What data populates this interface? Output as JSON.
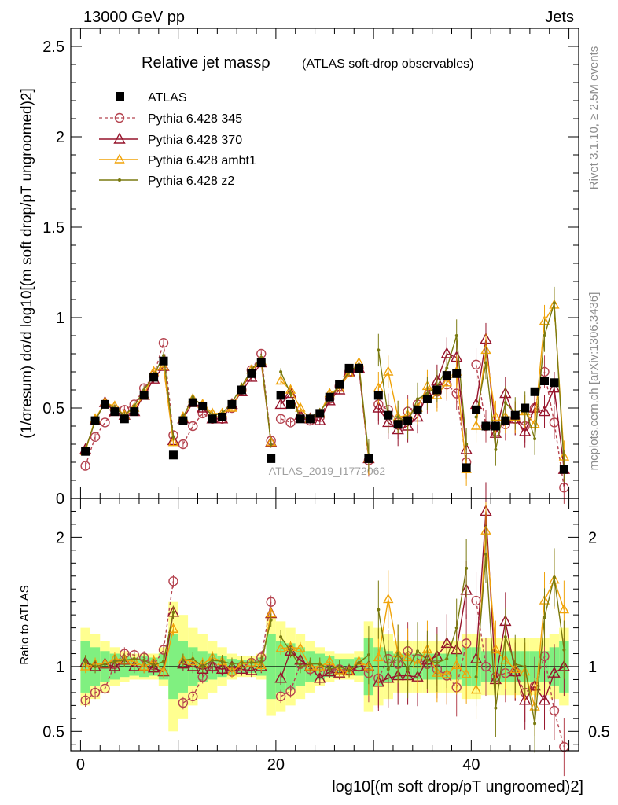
{
  "header": {
    "left": "13000 GeV pp",
    "right": "Jets"
  },
  "side_labels": {
    "rivet": "Rivet 3.1.10, ≥ 2.5M events",
    "mcplots": "mcplots.cern.ch [arXiv:1306.3436]"
  },
  "colors": {
    "atlas": "#000000",
    "p345": "#b5434f",
    "p370": "#96132b",
    "ambt1": "#f0a30a",
    "z2": "#7a7a10",
    "band_green": "#80f080",
    "band_yellow": "#ffff90"
  },
  "chart_data": [
    {
      "type": "scatter",
      "panel": "main",
      "title": "Relative jet massρ",
      "subtitle": "(ATLAS soft-drop observables)",
      "watermark": "ATLAS_2019_I1772062",
      "ylabel": "(1/σresum) dσ/d log10[(m soft drop/pT ungroomed)2]",
      "xlim": [
        -1,
        51
      ],
      "ylim": [
        0,
        2.6
      ],
      "yticks": [
        0,
        0.5,
        1,
        1.5,
        2,
        2.5
      ],
      "ytick_labels": [
        "0",
        "0.5",
        "1",
        "1.5",
        "2",
        "2.5"
      ],
      "grid": false,
      "legend_position": "top-left",
      "x": [
        0.5,
        1.5,
        2.5,
        3.5,
        4.5,
        5.5,
        6.5,
        7.5,
        8.5,
        9.5,
        10.5,
        11.5,
        12.5,
        13.5,
        14.5,
        15.5,
        16.5,
        17.5,
        18.5,
        19.5,
        20.5,
        21.5,
        22.5,
        23.5,
        24.5,
        25.5,
        26.5,
        27.5,
        28.5,
        29.5,
        30.5,
        31.5,
        32.5,
        33.5,
        34.5,
        35.5,
        36.5,
        37.5,
        38.5,
        39.5,
        40.5,
        41.5,
        42.5,
        43.5,
        44.5,
        45.5,
        46.5,
        47.5,
        48.5,
        49.5
      ],
      "series": [
        {
          "name": "ATLAS",
          "marker": "square",
          "values": [
            0.26,
            0.43,
            0.52,
            0.48,
            0.44,
            0.48,
            0.57,
            0.67,
            0.76,
            0.24,
            0.43,
            0.53,
            0.51,
            0.44,
            0.45,
            0.52,
            0.6,
            0.69,
            0.75,
            0.22,
            0.57,
            0.52,
            0.44,
            0.44,
            0.47,
            0.56,
            0.63,
            0.72,
            0.72,
            0.22,
            0.57,
            0.46,
            0.41,
            0.43,
            0.49,
            0.55,
            0.6,
            0.68,
            0.69,
            0.17,
            0.49,
            0.4,
            0.4,
            0.43,
            0.46,
            0.5,
            0.59,
            0.65,
            0.64,
            0.16
          ]
        },
        {
          "name": "Pythia 6.428 345",
          "marker": "circle-open",
          "style": "dashed",
          "values": [
            0.18,
            0.34,
            0.42,
            0.49,
            0.49,
            0.52,
            0.61,
            0.68,
            0.86,
            0.35,
            0.3,
            0.4,
            0.47,
            0.44,
            0.44,
            0.5,
            0.6,
            0.71,
            0.8,
            0.32,
            0.44,
            0.42,
            0.45,
            0.43,
            0.45,
            0.55,
            0.62,
            0.7,
            0.72,
            0.21,
            0.52,
            0.49,
            0.42,
            0.48,
            0.52,
            0.56,
            0.59,
            0.63,
            0.58,
            0.2,
            0.74,
            0.4,
            0.37,
            0.41,
            0.44,
            0.4,
            0.5,
            0.7,
            0.42,
            0.06
          ]
        },
        {
          "name": "Pythia 6.428 370",
          "marker": "triangle-open",
          "values": [
            0.27,
            0.43,
            0.53,
            0.48,
            0.46,
            0.48,
            0.57,
            0.66,
            0.73,
            0.32,
            0.44,
            0.53,
            0.5,
            0.44,
            0.44,
            0.52,
            0.59,
            0.67,
            0.75,
            0.31,
            0.52,
            0.58,
            0.46,
            0.44,
            0.43,
            0.54,
            0.6,
            0.7,
            0.72,
            0.22,
            0.5,
            0.42,
            0.38,
            0.4,
            0.45,
            0.58,
            0.65,
            0.8,
            0.78,
            0.27,
            0.52,
            0.88,
            0.36,
            0.58,
            0.44,
            0.37,
            0.5,
            0.48,
            0.61,
            0.16
          ]
        },
        {
          "name": "Pythia 6.428 ambt1",
          "marker": "triangle-open",
          "values": [
            0.26,
            0.44,
            0.53,
            0.51,
            0.46,
            0.5,
            0.57,
            0.7,
            0.73,
            0.31,
            0.45,
            0.55,
            0.52,
            0.47,
            0.47,
            0.5,
            0.61,
            0.71,
            0.76,
            0.31,
            0.65,
            0.6,
            0.5,
            0.44,
            0.47,
            0.58,
            0.61,
            0.69,
            0.75,
            0.22,
            0.61,
            0.7,
            0.45,
            0.46,
            0.5,
            0.62,
            0.57,
            0.64,
            0.7,
            0.16,
            0.4,
            0.82,
            0.45,
            0.45,
            0.45,
            0.48,
            0.41,
            0.98,
            1.07,
            0.23
          ]
        },
        {
          "name": "Pythia 6.428 z2",
          "marker": "dot",
          "values": [
            0.27,
            0.43,
            0.53,
            0.5,
            0.46,
            0.51,
            0.6,
            0.68,
            0.79,
            0.34,
            0.45,
            0.56,
            0.51,
            0.46,
            0.47,
            0.53,
            0.62,
            0.71,
            0.78,
            0.3,
            0.7,
            0.58,
            0.44,
            0.45,
            0.48,
            0.55,
            0.63,
            0.7,
            0.74,
            0.24,
            0.82,
            0.45,
            0.45,
            0.42,
            0.55,
            0.58,
            0.62,
            0.72,
            0.9,
            0.3,
            0.45,
            0.75,
            0.27,
            0.53,
            0.47,
            0.5,
            0.33,
            0.9,
            1.08,
            0.18
          ]
        }
      ]
    },
    {
      "type": "scatter",
      "panel": "ratio",
      "ylabel": "Ratio to ATLAS",
      "xlabel": "log10[(m soft drop/pT ungroomed)2]",
      "xlim": [
        -1,
        51
      ],
      "ylim": [
        0.35,
        2.3
      ],
      "yticks": [
        0.5,
        1,
        2
      ],
      "ytick_labels": [
        "0.5",
        "1",
        "2"
      ],
      "xticks": [
        0,
        20,
        40
      ],
      "xtick_labels": [
        "0",
        "20",
        "40"
      ],
      "reference_line": 1,
      "band_green_halfwidth": [
        0.2,
        0.15,
        0.12,
        0.1,
        0.08,
        0.07,
        0.08,
        0.07,
        0.1,
        0.25,
        0.2,
        0.15,
        0.12,
        0.1,
        0.08,
        0.06,
        0.05,
        0.05,
        0.07,
        0.25,
        0.2,
        0.18,
        0.15,
        0.12,
        0.1,
        0.08,
        0.06,
        0.06,
        0.07,
        0.22,
        0.15,
        0.12,
        0.1,
        0.1,
        0.1,
        0.1,
        0.1,
        0.1,
        0.1,
        0.15,
        0.15,
        0.12,
        0.12,
        0.12,
        0.12,
        0.12,
        0.12,
        0.12,
        0.15,
        0.2
      ],
      "band_yellow_halfwidth": [
        0.3,
        0.25,
        0.2,
        0.15,
        0.12,
        0.1,
        0.1,
        0.1,
        0.15,
        0.5,
        0.4,
        0.3,
        0.25,
        0.2,
        0.15,
        0.1,
        0.08,
        0.08,
        0.1,
        0.38,
        0.35,
        0.3,
        0.25,
        0.2,
        0.15,
        0.12,
        0.1,
        0.1,
        0.12,
        0.35,
        0.3,
        0.25,
        0.2,
        0.2,
        0.2,
        0.2,
        0.2,
        0.2,
        0.2,
        0.25,
        0.25,
        0.22,
        0.22,
        0.22,
        0.22,
        0.22,
        0.22,
        0.22,
        0.25,
        0.3
      ],
      "series": [
        {
          "name": "Pythia 6.428 345",
          "values": [
            0.74,
            0.8,
            0.83,
            1.02,
            1.1,
            1.09,
            1.07,
            1.01,
            1.13,
            1.66,
            0.72,
            0.77,
            0.92,
            1.0,
            0.98,
            0.96,
            1.0,
            1.03,
            1.07,
            1.5,
            0.77,
            0.81,
            1.02,
            0.98,
            0.96,
            0.98,
            0.98,
            0.97,
            1.0,
            0.95,
            0.91,
            1.06,
            1.02,
            1.12,
            1.06,
            1.02,
            0.98,
            0.93,
            0.84,
            1.18,
            1.51,
            1.0,
            0.92,
            0.95,
            0.96,
            0.8,
            0.85,
            1.08,
            0.66,
            0.38
          ]
        },
        {
          "name": "Pythia 6.428 370",
          "values": [
            1.03,
            1.0,
            1.02,
            1.0,
            1.05,
            1.0,
            1.0,
            0.99,
            0.96,
            1.42,
            1.02,
            1.0,
            0.98,
            1.0,
            0.98,
            1.0,
            0.98,
            0.97,
            1.0,
            1.41,
            0.91,
            1.12,
            1.05,
            1.0,
            0.91,
            0.96,
            0.95,
            0.97,
            1.0,
            1.0,
            0.88,
            0.91,
            0.93,
            0.93,
            0.92,
            1.05,
            1.08,
            1.18,
            1.13,
            1.59,
            1.06,
            2.2,
            0.9,
            1.35,
            0.96,
            0.74,
            0.85,
            0.74,
            0.95,
            1.0
          ]
        },
        {
          "name": "Pythia 6.428 ambt1",
          "values": [
            1.0,
            1.02,
            1.02,
            1.06,
            1.05,
            1.04,
            1.0,
            1.04,
            0.96,
            1.29,
            1.05,
            1.04,
            1.02,
            1.07,
            1.04,
            0.96,
            1.02,
            1.03,
            1.01,
            1.41,
            1.14,
            1.15,
            1.14,
            1.0,
            1.0,
            1.04,
            0.97,
            0.96,
            1.04,
            1.0,
            1.07,
            1.52,
            1.1,
            1.07,
            1.02,
            1.13,
            0.95,
            0.94,
            1.01,
            0.94,
            0.82,
            2.05,
            1.13,
            1.05,
            0.98,
            0.96,
            0.69,
            1.51,
            1.67,
            1.44
          ]
        },
        {
          "name": "Pythia 6.428 z2",
          "values": [
            1.04,
            1.0,
            1.02,
            1.04,
            1.05,
            1.06,
            1.05,
            1.01,
            1.04,
            1.42,
            1.05,
            1.06,
            1.0,
            1.05,
            1.04,
            1.02,
            1.03,
            1.03,
            1.04,
            1.36,
            1.23,
            1.12,
            1.0,
            1.02,
            1.02,
            0.98,
            1.0,
            0.97,
            1.03,
            1.09,
            1.44,
            0.98,
            1.1,
            0.98,
            1.12,
            1.05,
            1.03,
            1.06,
            1.3,
            1.76,
            0.92,
            1.87,
            0.68,
            1.23,
            1.02,
            1.0,
            0.56,
            1.38,
            1.69,
            1.13
          ]
        }
      ]
    }
  ]
}
